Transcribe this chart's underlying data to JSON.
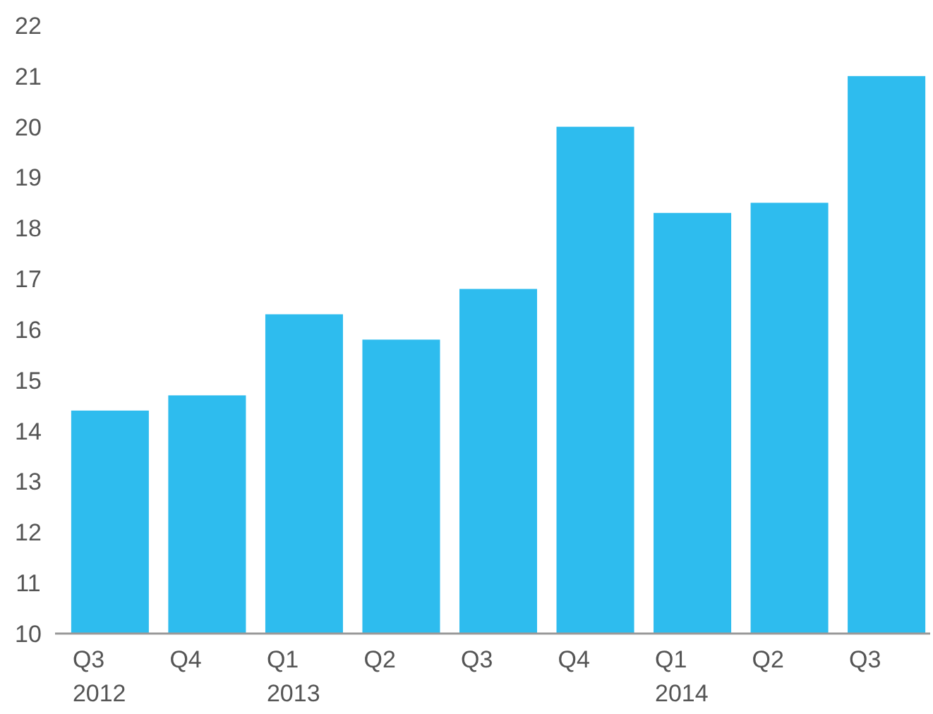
{
  "chart_data": {
    "type": "bar",
    "categories": [
      "Q3\n2012",
      "Q4",
      "Q1\n2013",
      "Q2",
      "Q3",
      "Q4",
      "Q1\n2014",
      "Q2",
      "Q3"
    ],
    "values": [
      14.4,
      14.7,
      16.3,
      15.8,
      16.8,
      20.0,
      18.3,
      18.5,
      21.0
    ],
    "color": "#2ebcee",
    "ylim": [
      10,
      22
    ],
    "yticks": [
      10,
      11,
      12,
      13,
      14,
      15,
      16,
      17,
      18,
      19,
      20,
      21,
      22
    ],
    "grid": false
  }
}
